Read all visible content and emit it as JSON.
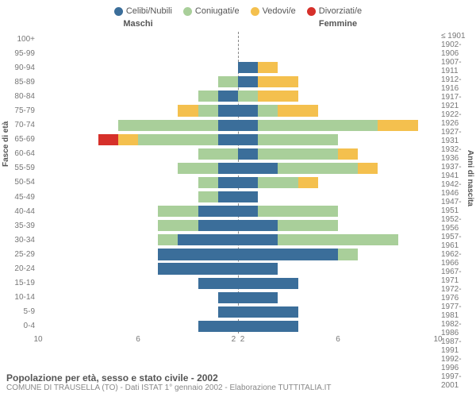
{
  "chart": {
    "type": "population-pyramid",
    "xmax": 10,
    "xticks": [
      10,
      6,
      2,
      2,
      6,
      10
    ],
    "colors": {
      "celibi": "#3b6e9a",
      "coniugati": "#a9cf9a",
      "vedovi": "#f4c04e",
      "divorziati": "#d6302a",
      "text": "#666666",
      "grid": "#888888",
      "background": "#ffffff"
    },
    "legend": [
      {
        "key": "celibi",
        "label": "Celibi/Nubili"
      },
      {
        "key": "coniugati",
        "label": "Coniugati/e"
      },
      {
        "key": "vedovi",
        "label": "Vedovi/e"
      },
      {
        "key": "divorziati",
        "label": "Divorziati/e"
      }
    ],
    "top_labels": {
      "left": "Maschi",
      "right": "Femmine"
    },
    "axis_titles": {
      "left": "Fasce di età",
      "right": "Anni di nascita"
    },
    "age_bands": [
      "100+",
      "95-99",
      "90-94",
      "85-89",
      "80-84",
      "75-79",
      "70-74",
      "65-69",
      "60-64",
      "55-59",
      "50-54",
      "45-49",
      "40-44",
      "35-39",
      "30-34",
      "25-29",
      "20-24",
      "15-19",
      "10-14",
      "5-9",
      "0-4"
    ],
    "birth_years": [
      "≤ 1901",
      "1902-1906",
      "1907-1911",
      "1912-1916",
      "1917-1921",
      "1922-1926",
      "1927-1931",
      "1932-1936",
      "1937-1941",
      "1942-1946",
      "1947-1951",
      "1952-1956",
      "1957-1961",
      "1962-1966",
      "1967-1971",
      "1972-1976",
      "1977-1981",
      "1982-1986",
      "1987-1991",
      "1992-1996",
      "1997-2001"
    ],
    "rows": [
      {
        "m": {
          "celibi": 0,
          "coniugati": 0,
          "vedovi": 0,
          "divorziati": 0
        },
        "f": {
          "celibi": 0,
          "coniugati": 0,
          "vedovi": 0,
          "divorziati": 0
        }
      },
      {
        "m": {
          "celibi": 0,
          "coniugati": 0,
          "vedovi": 0,
          "divorziati": 0
        },
        "f": {
          "celibi": 0,
          "coniugati": 0,
          "vedovi": 0,
          "divorziati": 0
        }
      },
      {
        "m": {
          "celibi": 0,
          "coniugati": 0,
          "vedovi": 0,
          "divorziati": 0
        },
        "f": {
          "celibi": 1,
          "coniugati": 0,
          "vedovi": 1,
          "divorziati": 0
        }
      },
      {
        "m": {
          "celibi": 0,
          "coniugati": 1,
          "vedovi": 0,
          "divorziati": 0
        },
        "f": {
          "celibi": 1,
          "coniugati": 0,
          "vedovi": 2,
          "divorziati": 0
        }
      },
      {
        "m": {
          "celibi": 1,
          "coniugati": 1,
          "vedovi": 0,
          "divorziati": 0
        },
        "f": {
          "celibi": 0,
          "coniugati": 1,
          "vedovi": 2,
          "divorziati": 0
        }
      },
      {
        "m": {
          "celibi": 1,
          "coniugati": 1,
          "vedovi": 1,
          "divorziati": 0
        },
        "f": {
          "celibi": 1,
          "coniugati": 1,
          "vedovi": 2,
          "divorziati": 0
        }
      },
      {
        "m": {
          "celibi": 1,
          "coniugati": 5,
          "vedovi": 0,
          "divorziati": 0
        },
        "f": {
          "celibi": 1,
          "coniugati": 6,
          "vedovi": 2,
          "divorziati": 0
        }
      },
      {
        "m": {
          "celibi": 1,
          "coniugati": 4,
          "vedovi": 1,
          "divorziati": 1
        },
        "f": {
          "celibi": 1,
          "coniugati": 4,
          "vedovi": 0,
          "divorziati": 0
        }
      },
      {
        "m": {
          "celibi": 0,
          "coniugati": 2,
          "vedovi": 0,
          "divorziati": 0
        },
        "f": {
          "celibi": 1,
          "coniugati": 4,
          "vedovi": 1,
          "divorziati": 0
        }
      },
      {
        "m": {
          "celibi": 1,
          "coniugati": 2,
          "vedovi": 0,
          "divorziati": 0
        },
        "f": {
          "celibi": 2,
          "coniugati": 4,
          "vedovi": 1,
          "divorziati": 0
        }
      },
      {
        "m": {
          "celibi": 1,
          "coniugati": 1,
          "vedovi": 0,
          "divorziati": 0
        },
        "f": {
          "celibi": 1,
          "coniugati": 2,
          "vedovi": 1,
          "divorziati": 0
        }
      },
      {
        "m": {
          "celibi": 1,
          "coniugati": 1,
          "vedovi": 0,
          "divorziati": 0
        },
        "f": {
          "celibi": 1,
          "coniugati": 0,
          "vedovi": 0,
          "divorziati": 0
        }
      },
      {
        "m": {
          "celibi": 2,
          "coniugati": 2,
          "vedovi": 0,
          "divorziati": 0
        },
        "f": {
          "celibi": 1,
          "coniugati": 4,
          "vedovi": 0,
          "divorziati": 0
        }
      },
      {
        "m": {
          "celibi": 2,
          "coniugati": 2,
          "vedovi": 0,
          "divorziati": 0
        },
        "f": {
          "celibi": 2,
          "coniugati": 3,
          "vedovi": 0,
          "divorziati": 0
        }
      },
      {
        "m": {
          "celibi": 3,
          "coniugati": 1,
          "vedovi": 0,
          "divorziati": 0
        },
        "f": {
          "celibi": 2,
          "coniugati": 6,
          "vedovi": 0,
          "divorziati": 0
        }
      },
      {
        "m": {
          "celibi": 4,
          "coniugati": 0,
          "vedovi": 0,
          "divorziati": 0
        },
        "f": {
          "celibi": 5,
          "coniugati": 1,
          "vedovi": 0,
          "divorziati": 0
        }
      },
      {
        "m": {
          "celibi": 4,
          "coniugati": 0,
          "vedovi": 0,
          "divorziati": 0
        },
        "f": {
          "celibi": 2,
          "coniugati": 0,
          "vedovi": 0,
          "divorziati": 0
        }
      },
      {
        "m": {
          "celibi": 2,
          "coniugati": 0,
          "vedovi": 0,
          "divorziati": 0
        },
        "f": {
          "celibi": 3,
          "coniugati": 0,
          "vedovi": 0,
          "divorziati": 0
        }
      },
      {
        "m": {
          "celibi": 1,
          "coniugati": 0,
          "vedovi": 0,
          "divorziati": 0
        },
        "f": {
          "celibi": 2,
          "coniugati": 0,
          "vedovi": 0,
          "divorziati": 0
        }
      },
      {
        "m": {
          "celibi": 1,
          "coniugati": 0,
          "vedovi": 0,
          "divorziati": 0
        },
        "f": {
          "celibi": 3,
          "coniugati": 0,
          "vedovi": 0,
          "divorziati": 0
        }
      },
      {
        "m": {
          "celibi": 2,
          "coniugati": 0,
          "vedovi": 0,
          "divorziati": 0
        },
        "f": {
          "celibi": 3,
          "coniugati": 0,
          "vedovi": 0,
          "divorziati": 0
        }
      }
    ],
    "footer": {
      "title": "Popolazione per età, sesso e stato civile - 2002",
      "subtitle": "COMUNE DI TRAUSELLA (TO) - Dati ISTAT 1° gennaio 2002 - Elaborazione TUTTITALIA.IT"
    }
  }
}
